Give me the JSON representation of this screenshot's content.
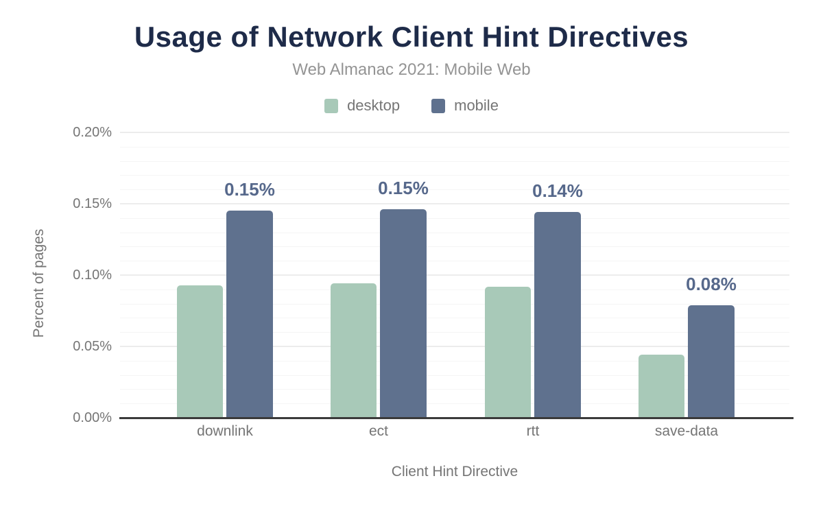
{
  "header": {
    "title": "Usage of Network Client Hint Directives",
    "subtitle": "Web Almanac 2021: Mobile Web"
  },
  "chart_data": {
    "type": "bar",
    "title": "Usage of Network Client Hint Directives",
    "subtitle": "Web Almanac 2021: Mobile Web",
    "categories": [
      "downlink",
      "ect",
      "rtt",
      "save-data"
    ],
    "series": [
      {
        "name": "desktop",
        "color": "#a8c9b8",
        "values": [
          0.093,
          0.094,
          0.092,
          0.044
        ]
      },
      {
        "name": "mobile",
        "color": "#5f718e",
        "values": [
          0.145,
          0.146,
          0.144,
          0.079
        ],
        "data_labels": [
          "0.15%",
          "0.15%",
          "0.14%",
          "0.08%"
        ]
      }
    ],
    "xlabel": "Client Hint Directive",
    "ylabel": "Percent of pages",
    "ylim": [
      0,
      0.2
    ],
    "y_major_step": 0.05,
    "y_minor_step": 0.01,
    "y_tick_labels": [
      "0.00%",
      "0.05%",
      "0.10%",
      "0.15%",
      "0.20%"
    ],
    "legend_position": "top",
    "grid": true,
    "colors": {
      "title": "#1e2b49",
      "subtitle": "#949494",
      "axis_text": "#757575",
      "data_label": "#56688b",
      "axis_line": "#3a3a3a",
      "grid_major": "#ececec",
      "grid_minor": "#f5f5f5"
    }
  }
}
